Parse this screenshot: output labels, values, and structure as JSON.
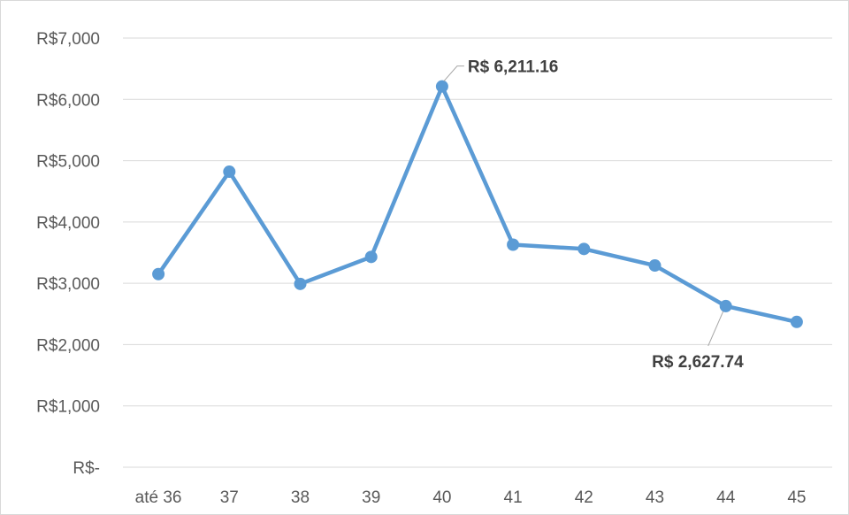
{
  "chart_data": {
    "type": "line",
    "categories": [
      "até 36",
      "37",
      "38",
      "39",
      "40",
      "41",
      "42",
      "43",
      "44",
      "45"
    ],
    "series": [
      {
        "values": [
          3150,
          4820,
          2990,
          3430,
          6211.16,
          3630,
          3560,
          3290,
          2627.74,
          2370
        ],
        "color": "#5b9bd5"
      }
    ],
    "ylim": [
      0,
      7000
    ],
    "y_ticks": [
      0,
      1000,
      2000,
      3000,
      4000,
      5000,
      6000,
      7000
    ],
    "y_tick_labels": [
      "R$-",
      "R$1,000",
      "R$2,000",
      "R$3,000",
      "R$4,000",
      "R$5,000",
      "R$6,000",
      "R$7,000"
    ],
    "grid": true,
    "gridline_color": "#d9d9d9",
    "legend": "none",
    "data_labels": [
      {
        "category_index": 4,
        "text": "R$ 6,211.16",
        "position": "above-right"
      },
      {
        "category_index": 8,
        "text": "R$ 2,627.74",
        "position": "below-left"
      }
    ],
    "title": "",
    "xlabel": "",
    "ylabel": ""
  }
}
